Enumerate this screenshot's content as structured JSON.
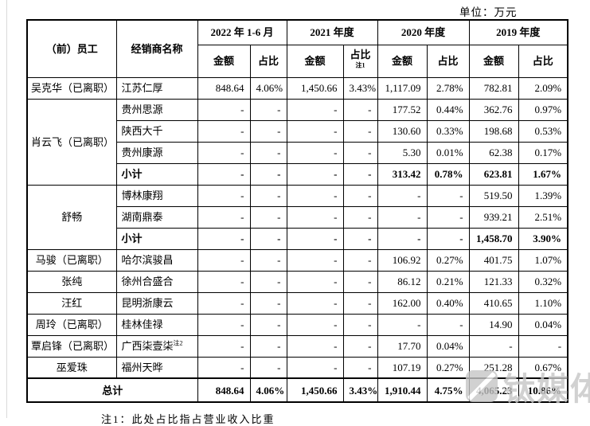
{
  "unit_label": "单位：万元",
  "watermark": {
    "text": "钛媒体"
  },
  "footnote": "注1：此处占比指占营业收入比重",
  "table": {
    "header": {
      "col_employee": "（前）员工",
      "col_distributor": "经销商名称",
      "amount_label": "金额",
      "ratio_label": "占比",
      "periods": [
        {
          "label": "2022 年 1-6 月",
          "ratio_sup": ""
        },
        {
          "label": "2021 年度",
          "ratio_sup": "注1"
        },
        {
          "label": "2020 年度",
          "ratio_sup": ""
        },
        {
          "label": "2019 年度",
          "ratio_sup": ""
        }
      ]
    },
    "groups": [
      {
        "employee": "吴克华（已离职）",
        "rows": [
          {
            "name": "江苏仁厚",
            "name_sup": "",
            "bold": false,
            "values": [
              "848.64",
              "4.06%",
              "1,450.66",
              "3.43%",
              "1,117.09",
              "2.78%",
              "782.81",
              "2.09%"
            ]
          }
        ]
      },
      {
        "employee": "肖云飞（已离职）",
        "rows": [
          {
            "name": "贵州思源",
            "name_sup": "",
            "bold": false,
            "values": [
              "-",
              "-",
              "-",
              "-",
              "177.52",
              "0.44%",
              "362.76",
              "0.97%"
            ]
          },
          {
            "name": "陕西大千",
            "name_sup": "",
            "bold": false,
            "values": [
              "-",
              "-",
              "-",
              "-",
              "130.60",
              "0.33%",
              "198.68",
              "0.53%"
            ]
          },
          {
            "name": "贵州康源",
            "name_sup": "",
            "bold": false,
            "values": [
              "-",
              "-",
              "-",
              "-",
              "5.30",
              "0.01%",
              "62.38",
              "0.17%"
            ]
          },
          {
            "name": "小计",
            "name_sup": "",
            "bold": true,
            "values": [
              "-",
              "-",
              "-",
              "-",
              "313.42",
              "0.78%",
              "623.81",
              "1.67%"
            ]
          }
        ]
      },
      {
        "employee": "舒畅",
        "rows": [
          {
            "name": "博林康翔",
            "name_sup": "",
            "bold": false,
            "values": [
              "-",
              "-",
              "-",
              "-",
              "-",
              "-",
              "519.50",
              "1.39%"
            ]
          },
          {
            "name": "湖南鼎泰",
            "name_sup": "",
            "bold": false,
            "values": [
              "-",
              "-",
              "-",
              "-",
              "-",
              "-",
              "939.21",
              "2.51%"
            ]
          },
          {
            "name": "小计",
            "name_sup": "",
            "bold": true,
            "values": [
              "-",
              "-",
              "-",
              "-",
              "-",
              "-",
              "1,458.70",
              "3.90%"
            ]
          }
        ]
      },
      {
        "employee": "马骏（已离职）",
        "rows": [
          {
            "name": "哈尔滨骏昌",
            "name_sup": "",
            "bold": false,
            "values": [
              "-",
              "-",
              "-",
              "-",
              "106.92",
              "0.27%",
              "401.75",
              "1.07%"
            ]
          }
        ]
      },
      {
        "employee": "张纯",
        "rows": [
          {
            "name": "徐州合盛合",
            "name_sup": "",
            "bold": false,
            "values": [
              "-",
              "-",
              "-",
              "-",
              "86.12",
              "0.21%",
              "121.33",
              "0.32%"
            ]
          }
        ]
      },
      {
        "employee": "汪红",
        "rows": [
          {
            "name": "昆明浙康云",
            "name_sup": "",
            "bold": false,
            "values": [
              "-",
              "-",
              "-",
              "-",
              "162.00",
              "0.40%",
              "410.65",
              "1.10%"
            ]
          }
        ]
      },
      {
        "employee": "周玲（已离职）",
        "rows": [
          {
            "name": "桂林佳禄",
            "name_sup": "",
            "bold": false,
            "values": [
              "-",
              "-",
              "-",
              "-",
              "-",
              "-",
              "14.90",
              "0.04%"
            ]
          }
        ]
      },
      {
        "employee": "覃启锋（已离职）",
        "rows": [
          {
            "name": "广西柒壹柒",
            "name_sup": "注2",
            "bold": false,
            "values": [
              "-",
              "-",
              "-",
              "-",
              "17.70",
              "0.04%",
              "-",
              "-"
            ]
          }
        ]
      },
      {
        "employee": "巫爱珠",
        "rows": [
          {
            "name": "福州天晔",
            "name_sup": "",
            "bold": false,
            "values": [
              "-",
              "-",
              "-",
              "-",
              "107.19",
              "0.27%",
              "251.28",
              "0.67%"
            ]
          }
        ]
      }
    ],
    "total": {
      "label": "总计",
      "values": [
        "848.64",
        "4.06%",
        "1,450.66",
        "3.43%",
        "1,910.44",
        "4.75%",
        "4,065.23",
        "10.86%"
      ]
    }
  }
}
